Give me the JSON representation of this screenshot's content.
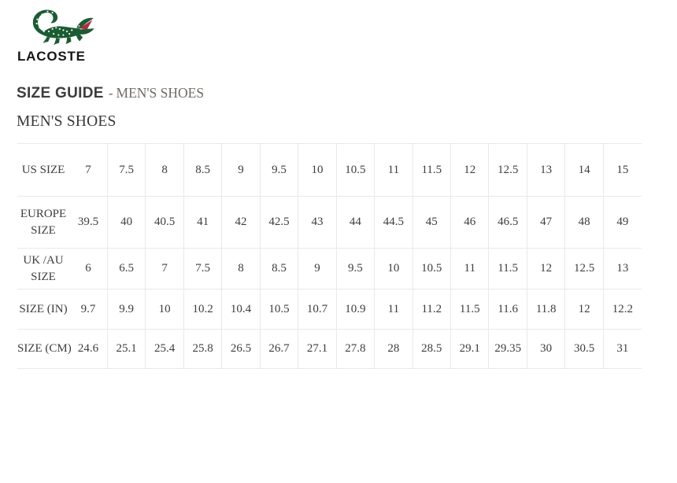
{
  "brand": {
    "name": "LACOSTE",
    "colors": {
      "logo_green": "#1b5c32",
      "logo_red": "#b22b43",
      "heading_dark": "#3c3c3c",
      "heading_muted": "#6f6a64",
      "table_border": "#e9e9e9"
    }
  },
  "page": {
    "title": "SIZE GUIDE",
    "title_separator": "-",
    "title_category": "MEN'S SHOES",
    "section_title": "MEN'S SHOES"
  },
  "size_table": {
    "rows": [
      {
        "label": "US SIZE",
        "label_lines": [
          "US SIZE"
        ],
        "values": [
          "7",
          "7.5",
          "8",
          "8.5",
          "9",
          "9.5",
          "10",
          "10.5",
          "11",
          "11.5",
          "12",
          "12.5",
          "13",
          "14",
          "15"
        ]
      },
      {
        "label": "EUROPE SIZE",
        "label_lines": [
          "EUROPE",
          "SIZE"
        ],
        "values": [
          "39.5",
          "40",
          "40.5",
          "41",
          "42",
          "42.5",
          "43",
          "44",
          "44.5",
          "45",
          "46",
          "46.5",
          "47",
          "48",
          "49"
        ]
      },
      {
        "label": "UK /AU SIZE",
        "label_lines": [
          "UK /AU",
          "SIZE"
        ],
        "values": [
          "6",
          "6.5",
          "7",
          "7.5",
          "8",
          "8.5",
          "9",
          "9.5",
          "10",
          "10.5",
          "11",
          "11.5",
          "12",
          "12.5",
          "13"
        ]
      },
      {
        "label": "SIZE (IN)",
        "label_lines": [
          "SIZE (IN)"
        ],
        "values": [
          "9.7",
          "9.9",
          "10",
          "10.2",
          "10.4",
          "10.5",
          "10.7",
          "10.9",
          "11",
          "11.2",
          "11.5",
          "11.6",
          "11.8",
          "12",
          "12.2"
        ]
      },
      {
        "label": "SIZE (CM)",
        "label_lines": [
          "SIZE (CM)"
        ],
        "values": [
          "24.6",
          "25.1",
          "25.4",
          "25.8",
          "26.5",
          "26.7",
          "27.1",
          "27.8",
          "28",
          "28.5",
          "29.1",
          "29.35",
          "30",
          "30.5",
          "31"
        ]
      }
    ]
  }
}
